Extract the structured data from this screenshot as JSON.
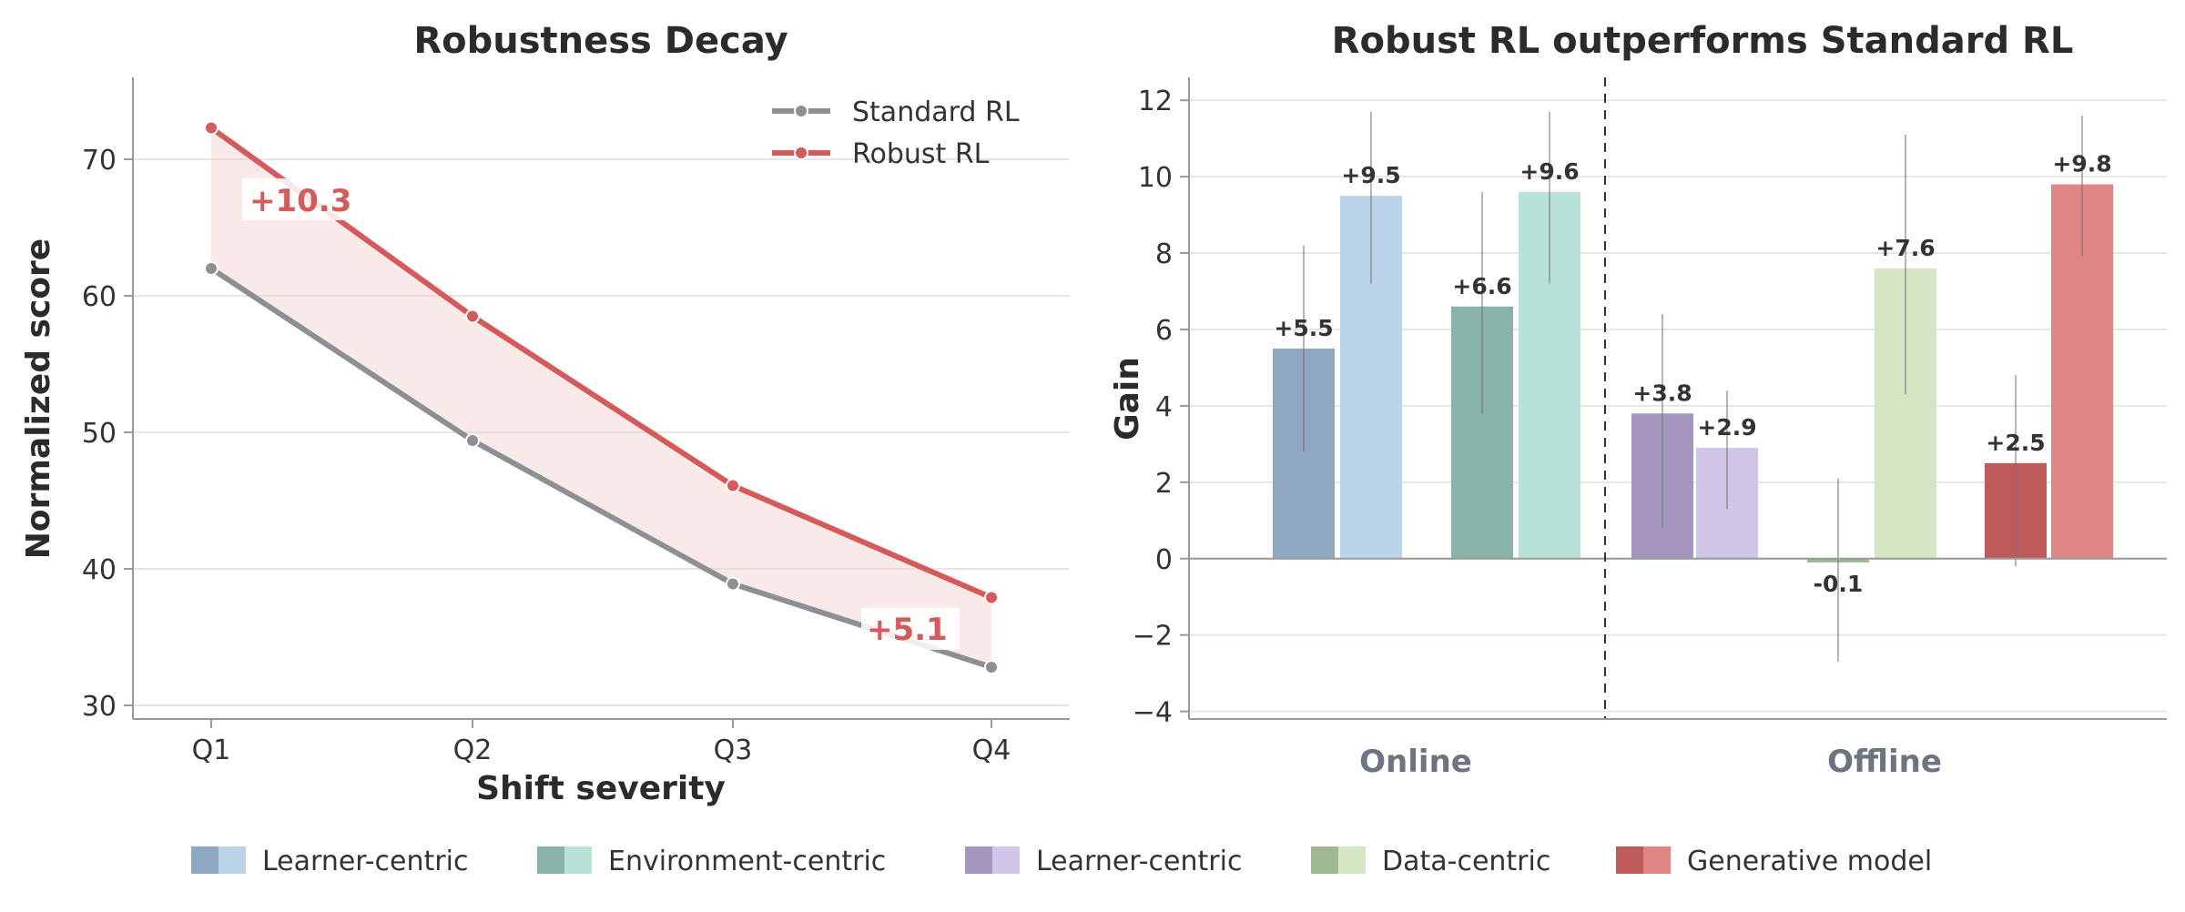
{
  "chart_data": [
    {
      "type": "line",
      "title": "Robustness Decay",
      "xlabel": "Shift severity",
      "ylabel": "Normalized score",
      "categories": [
        "Q1",
        "Q2",
        "Q3",
        "Q4"
      ],
      "ylim": [
        29,
        76
      ],
      "yticks": [
        30,
        40,
        50,
        60,
        70
      ],
      "grid": "y",
      "legend_position": "top-right",
      "series": [
        {
          "name": "Standard RL",
          "values": [
            62.0,
            49.4,
            38.9,
            32.8
          ],
          "color": "#8c9095"
        },
        {
          "name": "Robust RL",
          "values": [
            72.3,
            58.5,
            46.1,
            37.9
          ],
          "color": "#d65a5a"
        }
      ],
      "annotations": [
        {
          "text": "+10.3",
          "category": "Q1"
        },
        {
          "text": "+5.1",
          "category": "Q4"
        }
      ]
    },
    {
      "type": "bar",
      "title": "Robust RL outperforms Standard RL",
      "ylabel": "Gain",
      "ylim": [
        -4.2,
        12.6
      ],
      "yticks": [
        -4,
        -2,
        0,
        2,
        4,
        6,
        8,
        10,
        12
      ],
      "grid": "y",
      "groups": [
        "Online",
        "Offline"
      ],
      "bars": [
        {
          "group": "Online",
          "value": 5.5,
          "label": "+5.5",
          "err_low": 2.8,
          "err_high": 8.2,
          "color": "#8fa8c1"
        },
        {
          "group": "Online",
          "value": 9.5,
          "label": "+9.5",
          "err_low": 7.2,
          "err_high": 11.7,
          "color": "#bcd4ea"
        },
        {
          "group": "Online",
          "value": 6.6,
          "label": "+6.6",
          "err_low": 3.8,
          "err_high": 9.6,
          "color": "#88b2aa"
        },
        {
          "group": "Online",
          "value": 9.6,
          "label": "+9.6",
          "err_low": 7.2,
          "err_high": 11.7,
          "color": "#b8e2d8"
        },
        {
          "group": "Offline",
          "value": 3.8,
          "label": "+3.8",
          "err_low": 0.8,
          "err_high": 6.4,
          "color": "#a596bf"
        },
        {
          "group": "Offline",
          "value": 2.9,
          "label": "+2.9",
          "err_low": 1.3,
          "err_high": 4.4,
          "color": "#d1c5ea"
        },
        {
          "group": "Offline",
          "value": -0.1,
          "label": "-0.1",
          "err_low": -2.7,
          "err_high": 2.1,
          "color": "#9fb894"
        },
        {
          "group": "Offline",
          "value": 7.6,
          "label": "+7.6",
          "err_low": 4.3,
          "err_high": 11.1,
          "color": "#d4e6c4"
        },
        {
          "group": "Offline",
          "value": 2.5,
          "label": "+2.5",
          "err_low": -0.2,
          "err_high": 4.8,
          "color": "#bf5a5a"
        },
        {
          "group": "Offline",
          "value": 9.8,
          "label": "+9.8",
          "err_low": 7.9,
          "err_high": 11.6,
          "color": "#df8584"
        }
      ]
    }
  ],
  "legend": [
    {
      "label": "Learner-centric",
      "colors": [
        "#8fa8c1",
        "#bcd4ea"
      ]
    },
    {
      "label": "Environment-centric",
      "colors": [
        "#88b2aa",
        "#b8e2d8"
      ]
    },
    {
      "label": "Learner-centric",
      "colors": [
        "#a596bf",
        "#d1c5ea"
      ]
    },
    {
      "label": "Data-centric",
      "colors": [
        "#9fb894",
        "#d4e6c4"
      ]
    },
    {
      "label": "Generative model",
      "colors": [
        "#bf5a5a",
        "#df8584"
      ]
    }
  ]
}
